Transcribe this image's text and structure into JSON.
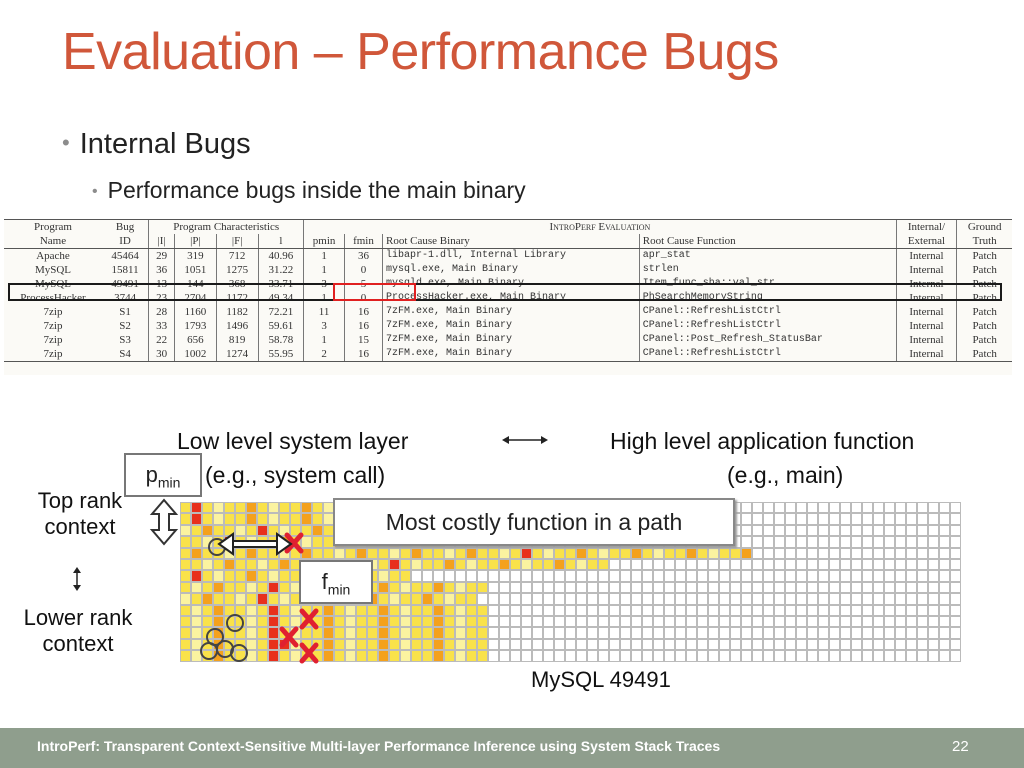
{
  "slide": {
    "title": "Evaluation – Performance Bugs",
    "bullet1": "Internal Bugs",
    "bullet2": "Performance bugs inside the main binary"
  },
  "table": {
    "header_top": [
      "Program",
      "Bug",
      "Program Characteristics",
      "IntroPerf Evaluation",
      "Internal/",
      "Ground"
    ],
    "header_bottom": [
      "Name",
      "ID",
      "|I|",
      "|P|",
      "|F|",
      "l",
      "pmin",
      "fmin",
      "Root Cause Binary",
      "Root Cause Function",
      "External",
      "Truth"
    ],
    "rows": [
      [
        "Apache",
        "45464",
        "29",
        "319",
        "712",
        "40.96",
        "1",
        "36",
        "libapr-1.dll, Internal Library",
        "apr_stat",
        "Internal",
        "Patch"
      ],
      [
        "MySQL",
        "15811",
        "36",
        "1051",
        "1275",
        "31.22",
        "1",
        "0",
        "mysql.exe, Main Binary",
        "strlen",
        "Internal",
        "Patch"
      ],
      [
        "MySQL",
        "49491",
        "13",
        "144",
        "368",
        "33.71",
        "3",
        "5",
        "mysqld.exe, Main Binary",
        "Item_func_sha::val_str",
        "Internal",
        "Patch"
      ],
      [
        "ProcessHacker",
        "3744",
        "23",
        "2704",
        "1172",
        "49.34",
        "1",
        "0",
        "ProcessHacker.exe, Main Binary",
        "PhSearchMemoryString",
        "Internal",
        "Patch"
      ],
      [
        "7zip",
        "S1",
        "28",
        "1160",
        "1182",
        "72.21",
        "11",
        "16",
        "7zFM.exe, Main Binary",
        "CPanel::RefreshListCtrl",
        "Internal",
        "Patch"
      ],
      [
        "7zip",
        "S2",
        "33",
        "1793",
        "1496",
        "59.61",
        "3",
        "16",
        "7zFM.exe, Main Binary",
        "CPanel::RefreshListCtrl",
        "Internal",
        "Patch"
      ],
      [
        "7zip",
        "S3",
        "22",
        "656",
        "819",
        "58.78",
        "1",
        "15",
        "7zFM.exe, Main Binary",
        "CPanel::Post_Refresh_StatusBar",
        "Internal",
        "Patch"
      ],
      [
        "7zip",
        "S4",
        "30",
        "1002",
        "1274",
        "55.95",
        "2",
        "16",
        "7zFM.exe, Main Binary",
        "CPanel::RefreshListCtrl",
        "Internal",
        "Patch"
      ]
    ]
  },
  "diagram": {
    "low_level": "Low level system layer",
    "low_level_eg": "(e.g., system call)",
    "high_level": "High level application function",
    "high_level_eg": "(e.g., main)",
    "pmin_base": "p",
    "pmin_sub": "min",
    "fmin_base": "f",
    "fmin_sub": "min",
    "top_rank_1": "Top rank",
    "top_rank_2": "context",
    "lower_rank_1": "Lower rank",
    "lower_rank_2": "context",
    "callout": "Most costly function in a path",
    "caption": "MySQL 49491"
  },
  "footer": {
    "text": "IntroPerf: Transparent Context-Sensitive Multi-layer Performance Inference using System Stack Traces",
    "page": "22"
  },
  "colors": {
    "title": "#d0573a",
    "footer_bg": "#8f9e8d",
    "row_highlight": "#1a1a1a",
    "col_highlight": "#e02020",
    "cell_red": "#e8301c",
    "cell_orange": "#f4a11c",
    "cell_yellow": "#f9e24a",
    "cell_lightyellow": "#fbf3a0"
  }
}
